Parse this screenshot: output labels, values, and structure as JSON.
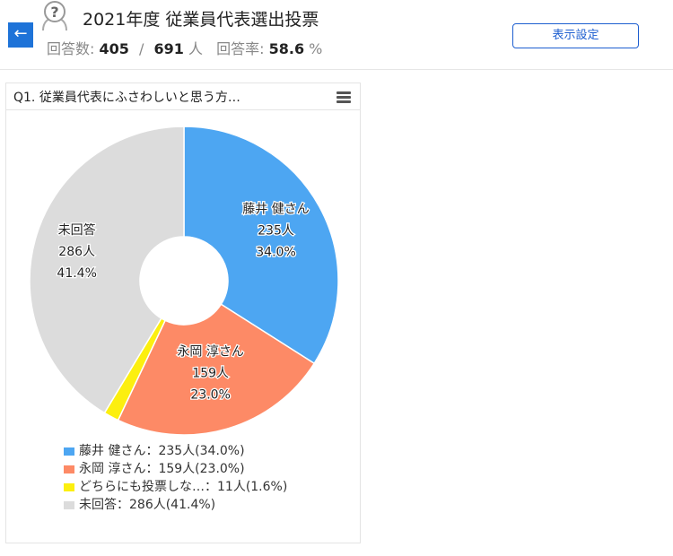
{
  "header": {
    "back_label": "←",
    "title": "2021年度 従業員代表選出投票",
    "stats": {
      "responses_label": "回答数:",
      "responses": "405",
      "separator": "/",
      "total": "691",
      "unit": "人",
      "rate_label": "回答率:",
      "rate": "58.6",
      "rate_unit": "%"
    },
    "view_settings_label": "表示設定"
  },
  "card": {
    "title": "Q1. 従業員代表にふさわしいと思う方…"
  },
  "chart_data": {
    "type": "pie",
    "donut": true,
    "slices": [
      {
        "label": "藤井 健さん",
        "count": "235人",
        "percent": "34.0%",
        "value": 235,
        "color": "#4da6f2",
        "legend": "藤井 健さん：235人(34.0%)",
        "text_color": "#222222"
      },
      {
        "label": "永岡 淳さん",
        "count": "159人",
        "percent": "23.0%",
        "value": 159,
        "color": "#fd8a66",
        "legend": "永岡 淳さん：159人(23.0%)",
        "text_color": "#222222"
      },
      {
        "label": "どちらにも投票しな…",
        "count": "11人",
        "percent": "1.6%",
        "value": 11,
        "color": "#fcef0f",
        "legend": "どちらにも投票しな…：11人(1.6%)",
        "text_color": "#222222"
      },
      {
        "label": "未回答",
        "count": "286人",
        "percent": "41.4%",
        "value": 286,
        "color": "#dcdcdc",
        "legend": "未回答：286人(41.4%)",
        "text_color": "#222222"
      }
    ],
    "legend_position": "bottom"
  }
}
